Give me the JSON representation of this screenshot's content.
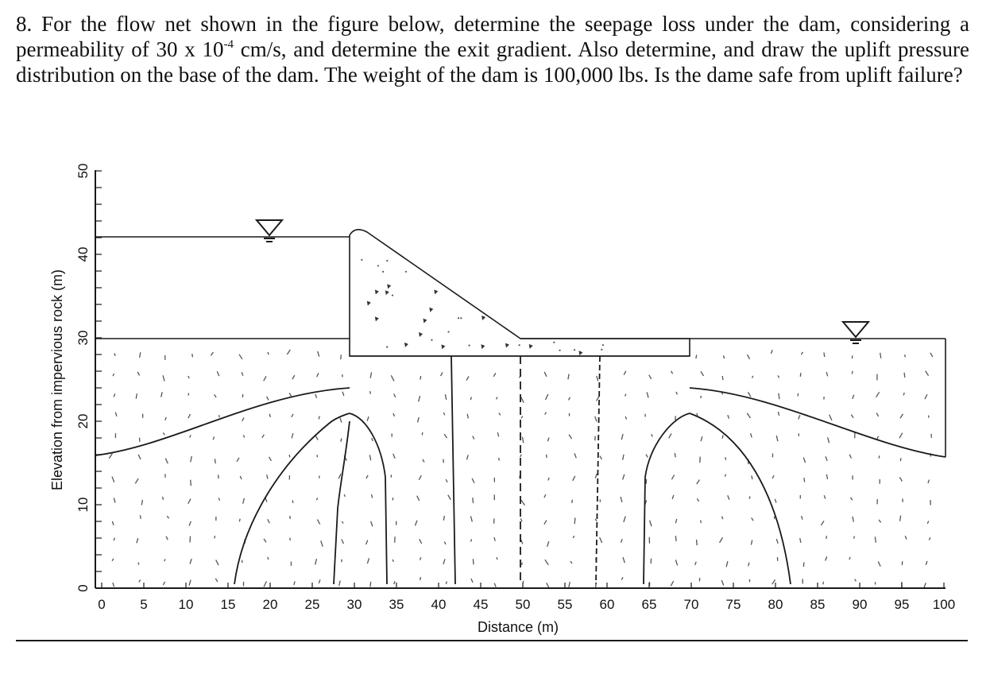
{
  "problem": {
    "text_part1": "8. For the flow net shown in the figure below, determine the seepage loss under the dam, considering a permeability of 30 x 10",
    "exponent": "-4",
    "text_part2": " cm/s, and determine the exit gradient. Also determine, and draw the uplift pressure distribution on the base of the dam. The weight of the dam is 100,000 lbs. Is the dame safe from uplift failure?"
  },
  "figure": {
    "xlabel": "Distance (m)",
    "ylabel": "Elevation from impervious rock (m)",
    "x_ticks": [
      "0",
      "5",
      "10",
      "15",
      "20",
      "25",
      "30",
      "35",
      "40",
      "45",
      "50",
      "55",
      "60",
      "65",
      "70",
      "75",
      "80",
      "85",
      "90",
      "95",
      "100"
    ],
    "y_ticks": [
      "0",
      "10",
      "20",
      "30",
      "40",
      "50"
    ],
    "upstream_water_level_m": 42,
    "downstream_water_level_m": 30,
    "ground_level_m": 30,
    "dam_base_level_m": 28,
    "impervious_rock_level_m": 0,
    "dam_x_range_m": [
      30,
      70
    ],
    "colors": {
      "ink": "#1a1a1a",
      "soil_dots": "#555555",
      "dam_fill": "#ffffff"
    },
    "symbols": [
      "water-level-triangle-icon",
      "water-level-triangle-icon"
    ]
  }
}
